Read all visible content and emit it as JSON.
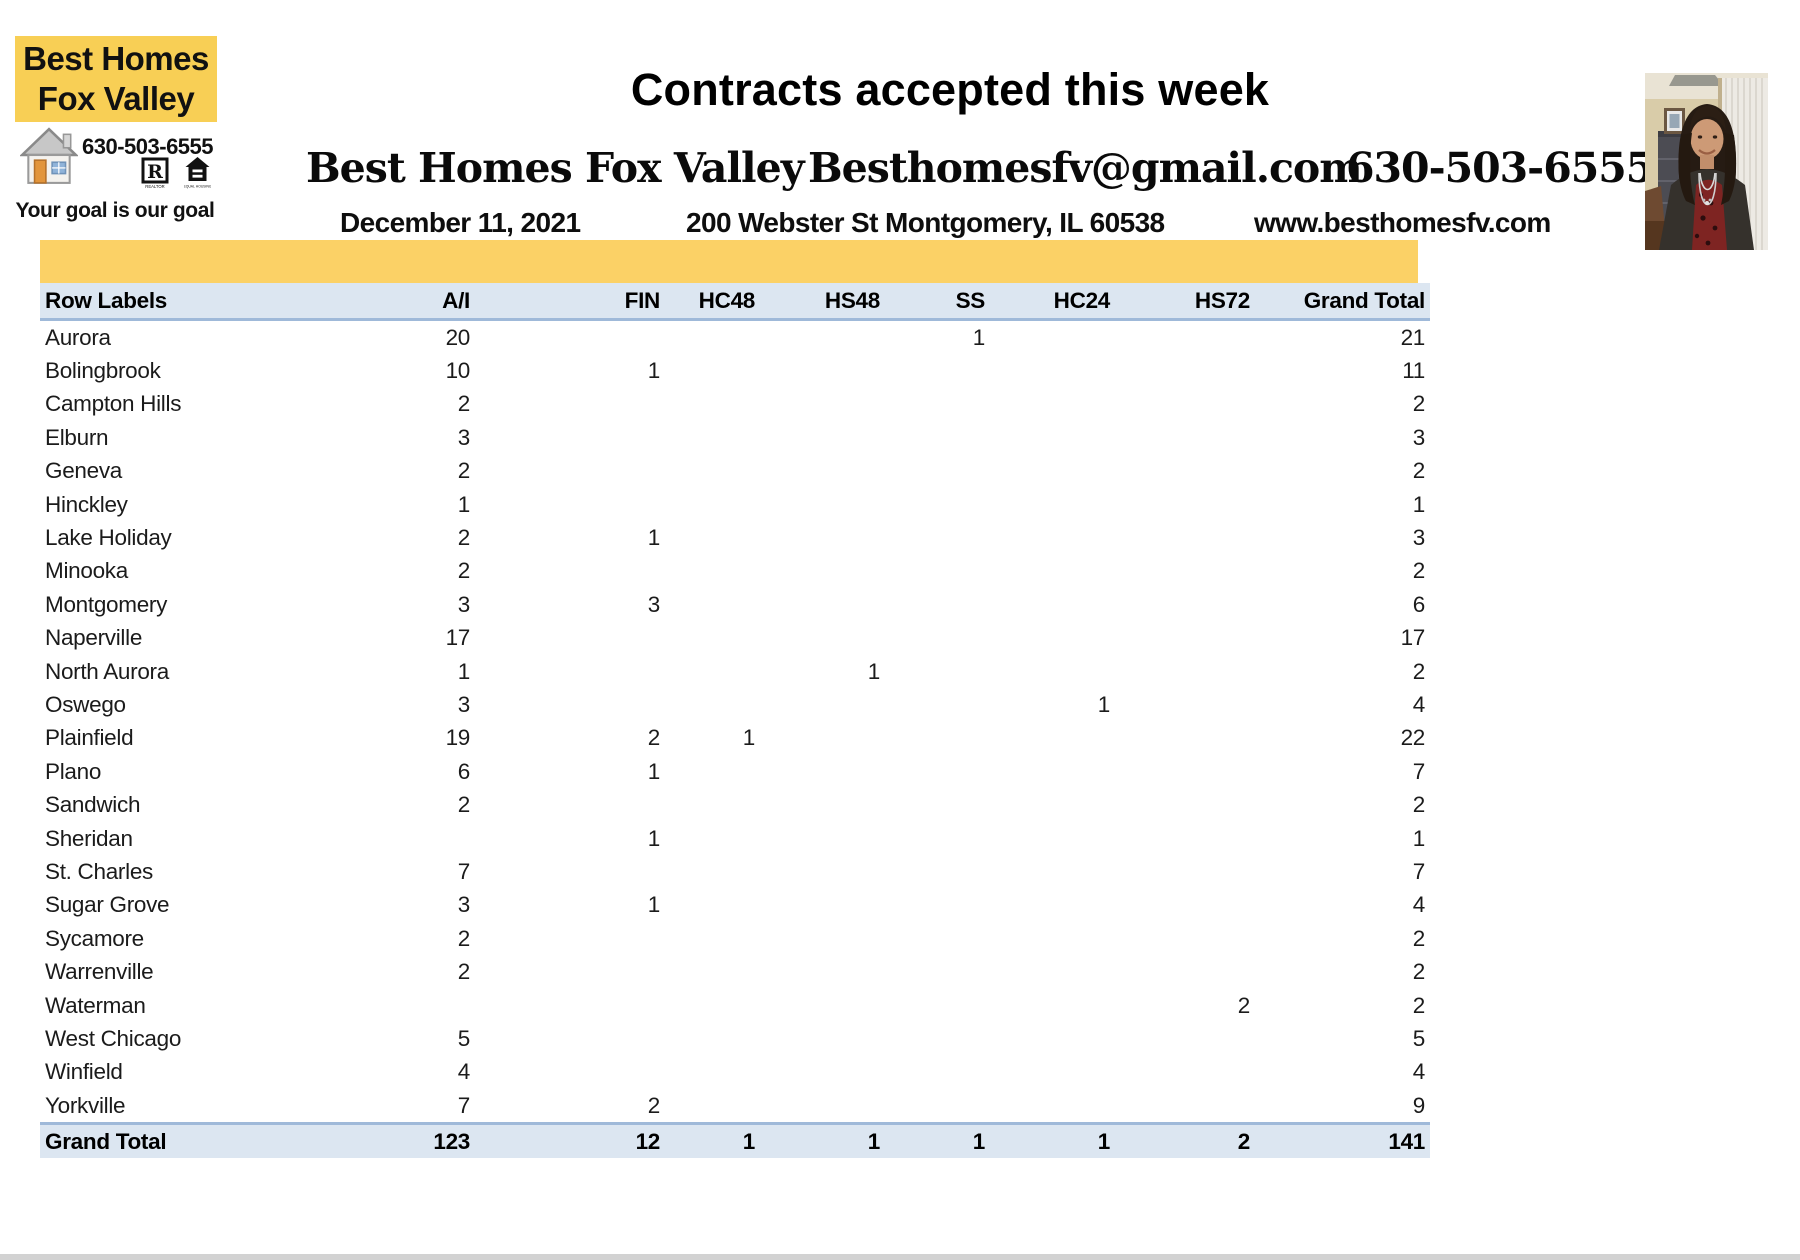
{
  "logo": {
    "name_line1": "Best Homes",
    "name_line2": "Fox Valley",
    "phone": "630-503-6555",
    "tagline": "Your goal is our goal",
    "realtor_label": "REALTOR",
    "equal_housing_label": "EQUAL HOUSING"
  },
  "header": {
    "title": "Contracts accepted this week",
    "company": "Best Homes Fox Valley",
    "email": "Besthomesfv@gmail.com",
    "phone": "630-503-6555",
    "date": "December 11, 2021",
    "address": "200 Webster St Montgomery, IL 60538",
    "website": "www.besthomesfv.com"
  },
  "colors": {
    "logo_yellow": "#F8CF55",
    "band_yellow": "#FBD166",
    "header_blue": "#DCE6F1",
    "border_blue": "#9FB9D9"
  },
  "table": {
    "columns": [
      "Row Labels",
      "A/I",
      "FIN",
      "HC48",
      "HS48",
      "SS",
      "HC24",
      "HS72",
      "Grand Total"
    ],
    "rows": [
      {
        "label": "Aurora",
        "values": [
          "20",
          "",
          "",
          "",
          "1",
          "",
          "",
          "21"
        ]
      },
      {
        "label": "Bolingbrook",
        "values": [
          "10",
          "1",
          "",
          "",
          "",
          "",
          "",
          "11"
        ]
      },
      {
        "label": "Campton Hills",
        "values": [
          "2",
          "",
          "",
          "",
          "",
          "",
          "",
          "2"
        ]
      },
      {
        "label": "Elburn",
        "values": [
          "3",
          "",
          "",
          "",
          "",
          "",
          "",
          "3"
        ]
      },
      {
        "label": "Geneva",
        "values": [
          "2",
          "",
          "",
          "",
          "",
          "",
          "",
          "2"
        ]
      },
      {
        "label": "Hinckley",
        "values": [
          "1",
          "",
          "",
          "",
          "",
          "",
          "",
          "1"
        ]
      },
      {
        "label": "Lake Holiday",
        "values": [
          "2",
          "1",
          "",
          "",
          "",
          "",
          "",
          "3"
        ]
      },
      {
        "label": "Minooka",
        "values": [
          "2",
          "",
          "",
          "",
          "",
          "",
          "",
          "2"
        ]
      },
      {
        "label": "Montgomery",
        "values": [
          "3",
          "3",
          "",
          "",
          "",
          "",
          "",
          "6"
        ]
      },
      {
        "label": "Naperville",
        "values": [
          "17",
          "",
          "",
          "",
          "",
          "",
          "",
          "17"
        ]
      },
      {
        "label": "North Aurora",
        "values": [
          "1",
          "",
          "",
          "1",
          "",
          "",
          "",
          "2"
        ]
      },
      {
        "label": "Oswego",
        "values": [
          "3",
          "",
          "",
          "",
          "",
          "1",
          "",
          "4"
        ]
      },
      {
        "label": "Plainfield",
        "values": [
          "19",
          "2",
          "1",
          "",
          "",
          "",
          "",
          "22"
        ]
      },
      {
        "label": "Plano",
        "values": [
          "6",
          "1",
          "",
          "",
          "",
          "",
          "",
          "7"
        ]
      },
      {
        "label": "Sandwich",
        "values": [
          "2",
          "",
          "",
          "",
          "",
          "",
          "",
          "2"
        ]
      },
      {
        "label": "Sheridan",
        "values": [
          "",
          "1",
          "",
          "",
          "",
          "",
          "",
          "1"
        ]
      },
      {
        "label": "St. Charles",
        "values": [
          "7",
          "",
          "",
          "",
          "",
          "",
          "",
          "7"
        ]
      },
      {
        "label": "Sugar Grove",
        "values": [
          "3",
          "1",
          "",
          "",
          "",
          "",
          "",
          "4"
        ]
      },
      {
        "label": "Sycamore",
        "values": [
          "2",
          "",
          "",
          "",
          "",
          "",
          "",
          "2"
        ]
      },
      {
        "label": "Warrenville",
        "values": [
          "2",
          "",
          "",
          "",
          "",
          "",
          "",
          "2"
        ]
      },
      {
        "label": "Waterman",
        "values": [
          "",
          "",
          "",
          "",
          "",
          "",
          "2",
          "2"
        ]
      },
      {
        "label": "West Chicago",
        "values": [
          "5",
          "",
          "",
          "",
          "",
          "",
          "",
          "5"
        ]
      },
      {
        "label": "Winfield",
        "values": [
          "4",
          "",
          "",
          "",
          "",
          "",
          "",
          "4"
        ]
      },
      {
        "label": "Yorkville",
        "values": [
          "7",
          "2",
          "",
          "",
          "",
          "",
          "",
          "9"
        ]
      }
    ],
    "grand_total": {
      "label": "Grand Total",
      "values": [
        "123",
        "12",
        "1",
        "1",
        "1",
        "1",
        "2",
        "141"
      ]
    }
  }
}
